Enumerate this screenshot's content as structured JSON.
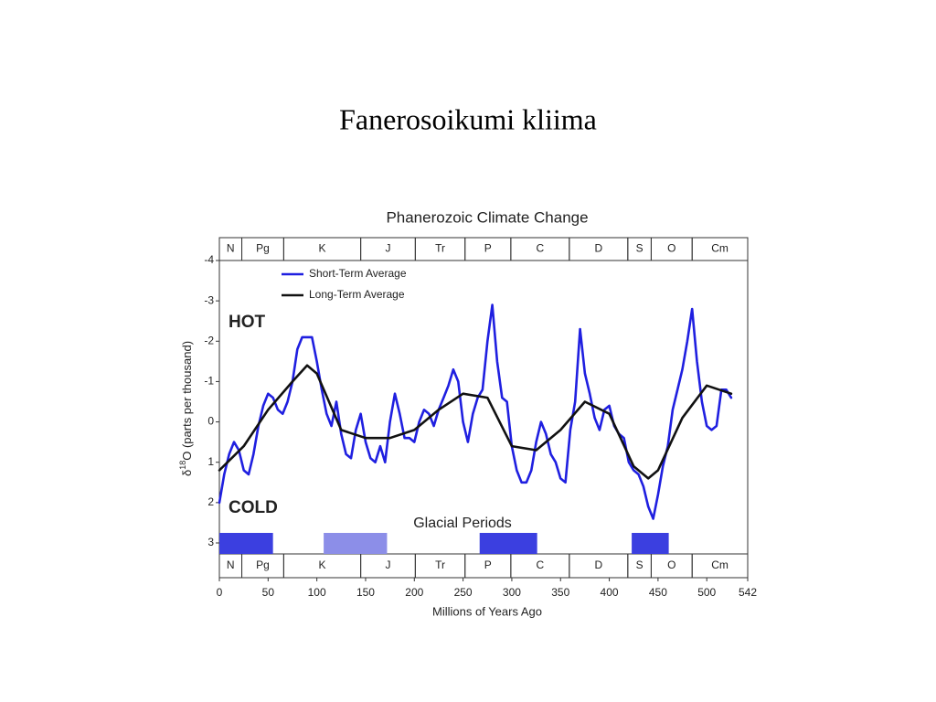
{
  "slide_title": "Fanerosoikumi kliima",
  "chart_data": {
    "type": "line",
    "title": "Phanerozoic Climate Change",
    "xlabel": "Millions of Years Ago",
    "ylabel": {
      "prefix": "δ",
      "sup": "18",
      "suffix": "O (parts per thousand)"
    },
    "xlim": [
      0,
      542
    ],
    "xticks": [
      0,
      50,
      100,
      150,
      200,
      250,
      300,
      350,
      400,
      450,
      500,
      542
    ],
    "ylim": [
      -4,
      3
    ],
    "y_inverted": true,
    "yticks": [
      -4,
      -3,
      -2,
      -1,
      0,
      1,
      2,
      3
    ],
    "legend": "upper-left",
    "annotations": [
      {
        "text": "HOT",
        "color": "#e31a1a"
      },
      {
        "text": "COLD",
        "color": "#1c1f6b"
      }
    ],
    "periods": [
      {
        "label": "N",
        "start": 0,
        "end": 23
      },
      {
        "label": "Pg",
        "start": 23,
        "end": 66
      },
      {
        "label": "K",
        "start": 66,
        "end": 145
      },
      {
        "label": "J",
        "start": 145,
        "end": 201
      },
      {
        "label": "Tr",
        "start": 201,
        "end": 252
      },
      {
        "label": "P",
        "start": 252,
        "end": 299
      },
      {
        "label": "C",
        "start": 299,
        "end": 359
      },
      {
        "label": "D",
        "start": 359,
        "end": 419
      },
      {
        "label": "S",
        "start": 419,
        "end": 443
      },
      {
        "label": "O",
        "start": 443,
        "end": 485
      },
      {
        "label": "Cm",
        "start": 485,
        "end": 542
      }
    ],
    "glacial": {
      "label": "Glacial Periods",
      "label_color": "#4f5fe0",
      "bars": [
        {
          "start": 0,
          "end": 55,
          "color": "#3b3fe0"
        },
        {
          "start": 107,
          "end": 172,
          "color": "#8c8ee8"
        },
        {
          "start": 267,
          "end": 326,
          "color": "#3b3fe0"
        },
        {
          "start": 423,
          "end": 461,
          "color": "#3b3fe0"
        }
      ]
    },
    "series": [
      {
        "name": "Short-Term Average",
        "color": "#1f1fe0",
        "x": [
          0,
          5,
          10,
          15,
          20,
          25,
          30,
          35,
          40,
          45,
          50,
          55,
          60,
          65,
          70,
          75,
          80,
          85,
          90,
          95,
          100,
          105,
          110,
          115,
          120,
          125,
          130,
          135,
          140,
          145,
          150,
          155,
          160,
          165,
          170,
          175,
          180,
          185,
          190,
          195,
          200,
          205,
          210,
          215,
          220,
          225,
          230,
          235,
          240,
          245,
          250,
          255,
          260,
          265,
          270,
          275,
          280,
          285,
          290,
          295,
          300,
          305,
          310,
          315,
          320,
          325,
          330,
          335,
          340,
          345,
          350,
          355,
          360,
          365,
          370,
          375,
          380,
          385,
          390,
          395,
          400,
          405,
          410,
          415,
          420,
          425,
          430,
          435,
          440,
          445,
          450,
          455,
          460,
          465,
          470,
          475,
          480,
          485,
          490,
          495,
          500,
          505,
          510,
          515,
          520,
          525
        ],
        "values": [
          2.0,
          1.3,
          0.8,
          0.5,
          0.7,
          1.2,
          1.3,
          0.8,
          0.1,
          -0.4,
          -0.7,
          -0.6,
          -0.3,
          -0.2,
          -0.5,
          -1.0,
          -1.8,
          -2.1,
          -2.1,
          -2.1,
          -1.5,
          -0.8,
          -0.2,
          0.1,
          -0.5,
          0.3,
          0.8,
          0.9,
          0.2,
          -0.2,
          0.5,
          0.9,
          1.0,
          0.6,
          1.0,
          0.0,
          -0.7,
          -0.2,
          0.4,
          0.4,
          0.5,
          0.0,
          -0.3,
          -0.2,
          0.1,
          -0.3,
          -0.6,
          -0.9,
          -1.3,
          -1.0,
          0.0,
          0.5,
          -0.2,
          -0.6,
          -0.8,
          -2.0,
          -2.9,
          -1.5,
          -0.6,
          -0.5,
          0.6,
          1.2,
          1.5,
          1.5,
          1.2,
          0.5,
          0.0,
          0.3,
          0.8,
          1.0,
          1.4,
          1.5,
          0.2,
          -0.5,
          -2.3,
          -1.2,
          -0.7,
          -0.1,
          0.2,
          -0.3,
          -0.4,
          0.1,
          0.3,
          0.4,
          1.0,
          1.2,
          1.3,
          1.6,
          2.1,
          2.4,
          1.8,
          1.1,
          0.6,
          -0.3,
          -0.8,
          -1.3,
          -2.0,
          -2.8,
          -1.5,
          -0.5,
          0.1,
          0.2,
          0.1,
          -0.8,
          -0.8,
          -0.6
        ]
      },
      {
        "name": "Long-Term Average",
        "color": "#111111",
        "x": [
          0,
          25,
          50,
          75,
          90,
          100,
          125,
          150,
          175,
          200,
          225,
          250,
          275,
          300,
          325,
          350,
          375,
          400,
          425,
          440,
          450,
          475,
          500,
          525
        ],
        "values": [
          1.2,
          0.6,
          -0.3,
          -1.0,
          -1.4,
          -1.2,
          0.2,
          0.4,
          0.4,
          0.2,
          -0.3,
          -0.7,
          -0.6,
          0.6,
          0.7,
          0.2,
          -0.5,
          -0.2,
          1.1,
          1.4,
          1.2,
          -0.1,
          -0.9,
          -0.7
        ]
      }
    ]
  }
}
